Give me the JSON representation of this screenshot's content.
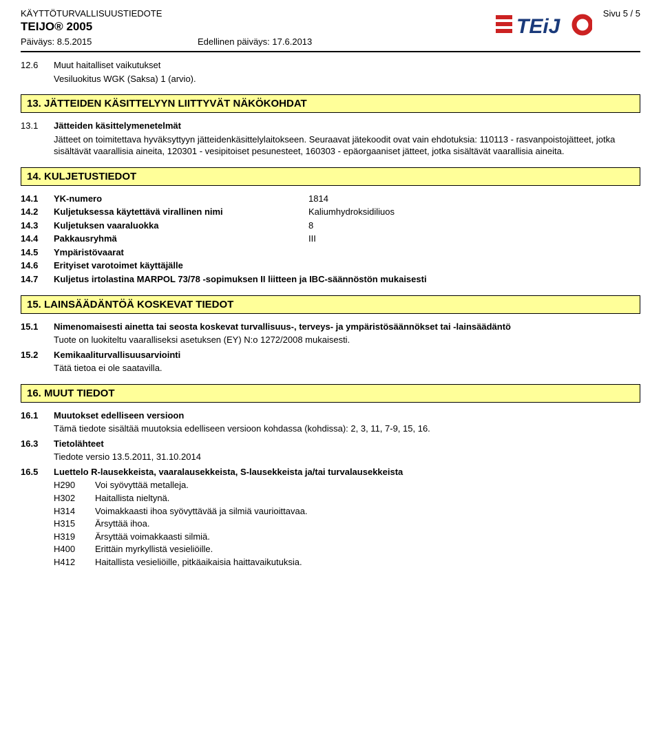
{
  "header": {
    "doc_type": "KÄYTTÖTURVALLISUUSTIEDOTE",
    "product": "TEIJO® 2005",
    "date_label": "Päiväys:",
    "date": "8.5.2015",
    "prev_date_label": "Edellinen päiväys:",
    "prev_date": "17.6.2013",
    "page": "Sivu 5 / 5",
    "logo_text": "TEiJO"
  },
  "s12": {
    "num": "12.6",
    "title": "Muut haitalliset vaikutukset",
    "body": "Vesiluokitus WGK (Saksa) 1 (arvio)."
  },
  "s13": {
    "bar": "13. JÄTTEIDEN KÄSITTELYYN LIITTYVÄT NÄKÖKOHDAT",
    "r1_num": "13.1",
    "r1_title": "Jätteiden käsittelymenetelmät",
    "r1_body": "Jätteet on toimitettava hyväksyttyyn jätteidenkäsittelylaitokseen. Seuraavat jätekoodit ovat vain ehdotuksia: 110113 - rasvanpoistojätteet, jotka sisältävät vaarallisia aineita, 120301 - vesipitoiset pesunesteet, 160303 - epäorgaaniset jätteet, jotka sisältävät vaarallisia aineita."
  },
  "s14": {
    "bar": "14. KULJETUSTIEDOT",
    "rows": [
      {
        "num": "14.1",
        "label": "YK-numero",
        "val": "1814"
      },
      {
        "num": "14.2",
        "label": "Kuljetuksessa käytettävä virallinen nimi",
        "val": "Kaliumhydroksidiliuos"
      },
      {
        "num": "14.3",
        "label": "Kuljetuksen vaaraluokka",
        "val": "8"
      },
      {
        "num": "14.4",
        "label": "Pakkausryhmä",
        "val": "III"
      },
      {
        "num": "14.5",
        "label": "Ympäristövaarat",
        "val": ""
      },
      {
        "num": "14.6",
        "label": "Erityiset varotoimet käyttäjälle",
        "val": ""
      }
    ],
    "r7_num": "14.7",
    "r7_label": "Kuljetus irtolastina MARPOL 73/78 -sopimuksen II liitteen ja IBC-säännöstön mukaisesti"
  },
  "s15": {
    "bar": "15. LAINSÄÄDÄNTÖÄ KOSKEVAT TIEDOT",
    "r1_num": "15.1",
    "r1_title": "Nimenomaisesti ainetta tai seosta koskevat turvallisuus-, terveys- ja ympäristösäännökset tai -lainsäädäntö",
    "r1_body": "Tuote on luokiteltu vaaralliseksi asetuksen (EY) N:o 1272/2008 mukaisesti.",
    "r2_num": "15.2",
    "r2_title": "Kemikaaliturvallisuusarviointi",
    "r2_body": "Tätä tietoa ei ole saatavilla."
  },
  "s16": {
    "bar": "16. MUUT TIEDOT",
    "r1_num": "16.1",
    "r1_title": "Muutokset edelliseen versioon",
    "r1_body": "Tämä tiedote sisältää muutoksia edelliseen versioon kohdassa (kohdissa): 2, 3, 11, 7-9, 15, 16.",
    "r3_num": "16.3",
    "r3_title": "Tietolähteet",
    "r3_body": "Tiedote versio 13.5.2011, 31.10.2014",
    "r5_num": "16.5",
    "r5_title": "Luettelo R-lausekkeista, vaaralausekkeista, S-lausekkeista ja/tai turvalausekkeista",
    "hazards": [
      {
        "code": "H290",
        "text": "Voi syövyttää metalleja."
      },
      {
        "code": "H302",
        "text": "Haitallista nieltynä."
      },
      {
        "code": "H314",
        "text": "Voimakkaasti ihoa syövyttävää ja silmiä vaurioittavaa."
      },
      {
        "code": "H315",
        "text": "Ärsyttää ihoa."
      },
      {
        "code": "H319",
        "text": "Ärsyttää voimakkaasti silmiä."
      },
      {
        "code": "H400",
        "text": "Erittäin myrkyllistä vesieliöille."
      },
      {
        "code": "H412",
        "text": "Haitallista vesieliöille, pitkäaikaisia haittavaikutuksia."
      }
    ]
  }
}
